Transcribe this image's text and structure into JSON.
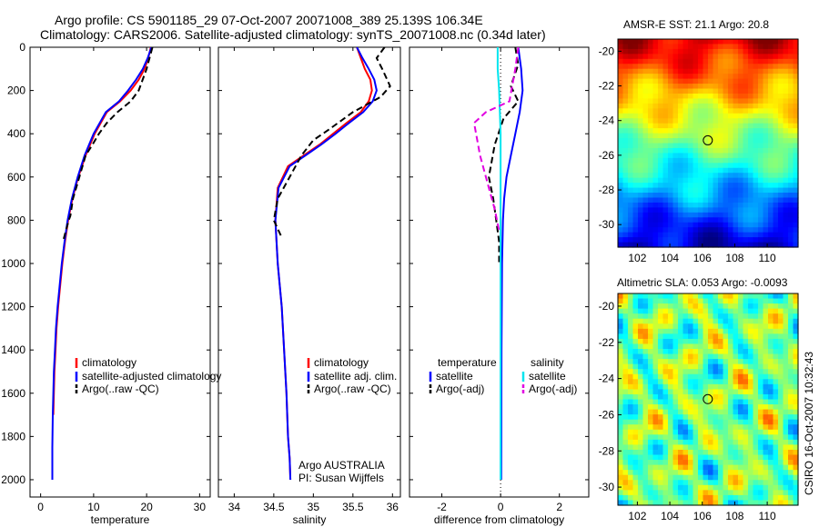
{
  "title_line1": "Argo profile: CS 5901185_29 07-Oct-2007 20071008_389 25.139S 106.34E",
  "title_line2": "Climatology: CARS2006. Satellite-adjusted climatology: synTS_20071008.nc (0.34d later)",
  "credit": "CSIRO 16-Oct-2007 10:32:43",
  "colors": {
    "climatology": "#ff0000",
    "satellite": "#0000ff",
    "argo": "#000000",
    "salinity_satellite": "#00e5ee",
    "salinity_argo": "#e100e1"
  },
  "depth_ticks": [
    "0",
    "200",
    "400",
    "600",
    "800",
    "1000",
    "1200",
    "1400",
    "1600",
    "1800",
    "2000"
  ],
  "chart_data": [
    {
      "type": "line",
      "xlabel": "temperature",
      "xlim": [
        -2,
        32
      ],
      "ylim": [
        2080,
        0
      ],
      "xticks": [
        "0",
        "10",
        "20",
        "30"
      ],
      "yticks": [
        0,
        200,
        400,
        600,
        800,
        1000,
        1200,
        1400,
        1600,
        1800,
        2000
      ],
      "legend": {
        "placement": "lower-right",
        "entries": [
          "climatology",
          "satellite-adjusted climatology",
          "Argo(..raw -QC)"
        ]
      },
      "series": [
        {
          "name": "climatology",
          "color": "#ff0000",
          "dash": "",
          "x": [
            20.8,
            20.3,
            19.6,
            18.5,
            17.0,
            15.0,
            12.5,
            10.2,
            8.5,
            7.1,
            6.0,
            5.2,
            4.6,
            4.1,
            3.7,
            3.3,
            3.0,
            2.8,
            2.6,
            2.5,
            2.4
          ],
          "y": [
            0,
            50,
            100,
            150,
            200,
            250,
            300,
            400,
            500,
            600,
            700,
            800,
            900,
            1000,
            1100,
            1200,
            1300,
            1400,
            1500,
            1600,
            1700
          ]
        },
        {
          "name": "satellite-adjusted climatology",
          "color": "#0000ff",
          "dash": "",
          "x": [
            20.9,
            20.2,
            19.3,
            18.0,
            16.5,
            14.8,
            12.3,
            10.0,
            8.3,
            7.0,
            5.9,
            5.1,
            4.5,
            4.0,
            3.6,
            3.2,
            2.9,
            2.7,
            2.5,
            2.4,
            2.3,
            2.2,
            2.2
          ],
          "y": [
            0,
            50,
            100,
            150,
            200,
            250,
            300,
            400,
            500,
            600,
            700,
            800,
            900,
            1000,
            1100,
            1200,
            1300,
            1400,
            1500,
            1600,
            1700,
            1850,
            2000
          ]
        },
        {
          "name": "Argo(..raw -QC)",
          "color": "#000000",
          "dash": "7,4",
          "x": [
            21.1,
            20.0,
            18.5,
            17.0,
            14.5,
            12.5,
            11.0,
            9.8,
            8.5,
            7.3,
            6.1,
            5.6,
            5.3,
            4.2
          ],
          "y": [
            0,
            100,
            200,
            250,
            300,
            350,
            400,
            450,
            500,
            600,
            700,
            780,
            800,
            900
          ]
        }
      ]
    },
    {
      "type": "line",
      "xlabel": "salinity",
      "xlim": [
        33.8,
        36.1
      ],
      "ylim": [
        2080,
        0
      ],
      "xticks": [
        "34",
        "34.5",
        "35",
        "35.5",
        "36"
      ],
      "yticks": [
        0,
        200,
        400,
        600,
        800,
        1000,
        1200,
        1400,
        1600,
        1800,
        2000
      ],
      "legend": {
        "placement": "lower-right",
        "entries": [
          "climatology",
          "satellite adj. clim.",
          "Argo(..raw -QC)"
        ]
      },
      "annotation": [
        "Argo AUSTRALIA",
        "PI: Susan Wijffels"
      ],
      "series": [
        {
          "name": "climatology",
          "color": "#ff0000",
          "dash": "",
          "x": [
            35.55,
            35.6,
            35.65,
            35.72,
            35.74,
            35.7,
            35.6,
            35.42,
            35.25,
            35.08,
            34.88,
            34.68,
            34.55,
            34.52,
            34.55,
            34.6,
            34.63,
            34.66,
            34.68,
            34.7,
            34.71
          ],
          "y": [
            0,
            50,
            100,
            150,
            200,
            250,
            300,
            350,
            400,
            450,
            500,
            550,
            650,
            800,
            1000,
            1200,
            1400,
            1600,
            1800,
            1900,
            2000
          ]
        },
        {
          "name": "satellite adj. clim.",
          "color": "#0000ff",
          "dash": "",
          "x": [
            35.55,
            35.62,
            35.7,
            35.77,
            35.8,
            35.75,
            35.63,
            35.45,
            35.28,
            35.1,
            34.9,
            34.7,
            34.56,
            34.52,
            34.55,
            34.6,
            34.63,
            34.66,
            34.68,
            34.7,
            34.71
          ],
          "y": [
            0,
            50,
            100,
            150,
            200,
            250,
            300,
            350,
            400,
            450,
            500,
            550,
            650,
            800,
            1000,
            1200,
            1400,
            1600,
            1800,
            1900,
            2000
          ]
        },
        {
          "name": "Argo(..raw -QC)",
          "color": "#000000",
          "dash": "7,4",
          "x": [
            35.9,
            35.8,
            35.87,
            35.97,
            35.85,
            35.5,
            35.2,
            35.0,
            34.85,
            34.7,
            34.55,
            34.5,
            34.6
          ],
          "y": [
            0,
            50,
            100,
            180,
            230,
            300,
            380,
            430,
            500,
            600,
            700,
            800,
            880
          ]
        }
      ]
    },
    {
      "type": "line",
      "xlabel": "difference from climatology",
      "xlim": [
        -3.1,
        3.0
      ],
      "ylim": [
        2080,
        0
      ],
      "xticks": [
        "-2",
        "0",
        "2"
      ],
      "yticks": [
        0,
        200,
        400,
        600,
        800,
        1000,
        1200,
        1400,
        1600,
        1800,
        2000
      ],
      "legend": {
        "placement": "lower",
        "temperature_header": "temperature",
        "salinity_header": "salinity",
        "entries": [
          "satellite",
          "Argo(-adj)",
          "satellite",
          "Argo(-adj)"
        ]
      },
      "series": [
        {
          "name": "temperature satellite",
          "color": "#0000ff",
          "dash": "",
          "x": [
            0.6,
            0.7,
            0.75,
            0.65,
            0.5,
            0.35,
            0.2,
            0.12,
            0.08,
            0.05,
            0.03,
            0.02
          ],
          "y": [
            0,
            100,
            200,
            300,
            400,
            500,
            600,
            700,
            800,
            1000,
            1400,
            2000
          ]
        },
        {
          "name": "temperature Argo(-adj)",
          "color": "#000000",
          "dash": "7,4",
          "x": [
            0.5,
            0.6,
            0.35,
            0.6,
            0.1,
            -0.2,
            -0.4,
            -0.25,
            -0.15,
            -0.05,
            -0.05
          ],
          "y": [
            0,
            80,
            180,
            250,
            330,
            450,
            600,
            700,
            800,
            900,
            1000
          ]
        },
        {
          "name": "salinity satellite",
          "color": "#00e5ee",
          "dash": "",
          "x": [
            -0.1,
            -0.1,
            -0.05,
            0.0,
            0.0,
            0.0
          ],
          "y": [
            0,
            100,
            200,
            400,
            1000,
            2000
          ]
        },
        {
          "name": "salinity Argo(-adj)",
          "color": "#e100e1",
          "dash": "7,4",
          "x": [
            0.6,
            0.5,
            0.3,
            -0.5,
            -0.9,
            -0.7,
            -0.4,
            -0.2,
            -0.05
          ],
          "y": [
            0,
            100,
            250,
            300,
            350,
            500,
            650,
            750,
            850
          ]
        }
      ]
    },
    {
      "type": "heatmap",
      "title": "AMSR-E SST: 21.1 Argo: 20.8",
      "xlim": [
        100.8,
        111.9
      ],
      "ylim": [
        -31.3,
        -19.3
      ],
      "xticks": [
        "102",
        "104",
        "106",
        "108",
        "110"
      ],
      "yticks": [
        "-20",
        "-22",
        "-24",
        "-26",
        "-28",
        "-30"
      ],
      "marker": {
        "lon": 106.34,
        "lat": -25.139
      },
      "colormap": "jet",
      "pattern": "warm in north (top), cooling southward to blue in south"
    },
    {
      "type": "heatmap",
      "title": "Altimetric SLA: 0.053 Argo: -0.0093",
      "xlim": [
        100.8,
        111.9
      ],
      "ylim": [
        -31.0,
        -19.3
      ],
      "xticks": [
        "102",
        "104",
        "106",
        "108",
        "110"
      ],
      "yticks": [
        "-20",
        "-22",
        "-24",
        "-26",
        "-28",
        "-30"
      ],
      "marker": {
        "lon": 106.34,
        "lat": -25.139
      },
      "colormap": "jet",
      "pattern": "mostly green-yellow with scattered orange and cyan eddies"
    }
  ]
}
